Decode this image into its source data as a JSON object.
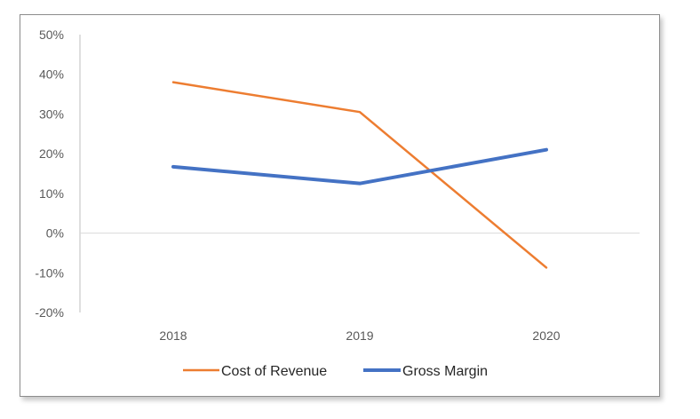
{
  "chart_data": {
    "type": "line",
    "categories": [
      "2018",
      "2019",
      "2020"
    ],
    "series": [
      {
        "name": "Cost of Revenue",
        "values": [
          0.38,
          0.305,
          -0.087
        ],
        "color": "#ed7d31"
      },
      {
        "name": "Gross Margin",
        "values": [
          0.167,
          0.125,
          0.21
        ],
        "color": "#4472c4"
      }
    ],
    "y_ticks": [
      "50%",
      "40%",
      "30%",
      "20%",
      "10%",
      "0%",
      "-10%",
      "-20%"
    ],
    "ylim": [
      -0.2,
      0.5
    ],
    "grid": false,
    "legend_position": "bottom"
  }
}
